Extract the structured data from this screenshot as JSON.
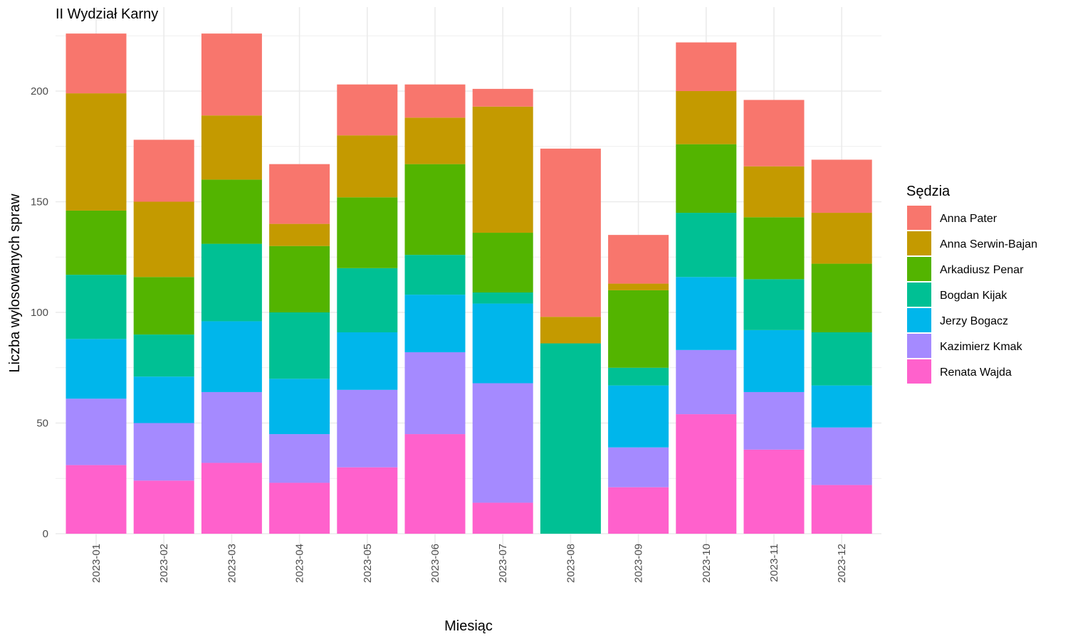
{
  "chart_data": {
    "type": "bar",
    "stacked": true,
    "title": "II Wydział Karny",
    "xlabel": "Miesiąc",
    "ylabel": "Liczba wylosowanych spraw",
    "ylim": [
      0,
      226
    ],
    "yticks": [
      0,
      50,
      100,
      150,
      200
    ],
    "grid": true,
    "legend_position": "right",
    "legend_title": "Sędzia",
    "categories": [
      "2023-01",
      "2023-02",
      "2023-03",
      "2023-04",
      "2023-05",
      "2023-06",
      "2023-07",
      "2023-08",
      "2023-09",
      "2023-10",
      "2023-11",
      "2023-12"
    ],
    "series": [
      {
        "name": "Renata Wajda",
        "color": "#FF61CC",
        "values": [
          31,
          24,
          32,
          23,
          30,
          45,
          14,
          0,
          21,
          54,
          38,
          22
        ]
      },
      {
        "name": "Kazimierz Kmak",
        "color": "#A58AFF",
        "values": [
          30,
          26,
          32,
          22,
          35,
          37,
          54,
          0,
          18,
          29,
          26,
          26
        ]
      },
      {
        "name": "Jerzy Bogacz",
        "color": "#00B6EB",
        "values": [
          27,
          21,
          32,
          25,
          26,
          26,
          36,
          0,
          28,
          33,
          28,
          19
        ]
      },
      {
        "name": "Bogdan Kijak",
        "color": "#00C094",
        "values": [
          29,
          19,
          35,
          30,
          29,
          18,
          5,
          86,
          8,
          29,
          23,
          24
        ]
      },
      {
        "name": "Arkadiusz Penar",
        "color": "#53B400",
        "values": [
          29,
          26,
          29,
          30,
          32,
          41,
          27,
          0,
          35,
          31,
          28,
          31
        ]
      },
      {
        "name": "Anna Serwin-Bajan",
        "color": "#C49A00",
        "values": [
          53,
          34,
          29,
          10,
          28,
          21,
          57,
          12,
          3,
          24,
          23,
          23
        ]
      },
      {
        "name": "Anna Pater",
        "color": "#F8766D",
        "values": [
          27,
          28,
          37,
          27,
          23,
          15,
          8,
          76,
          22,
          22,
          30,
          24
        ]
      }
    ],
    "legend_order": [
      "Anna Pater",
      "Anna Serwin-Bajan",
      "Arkadiusz Penar",
      "Bogdan Kijak",
      "Jerzy Bogacz",
      "Kazimierz Kmak",
      "Renata Wajda"
    ]
  }
}
